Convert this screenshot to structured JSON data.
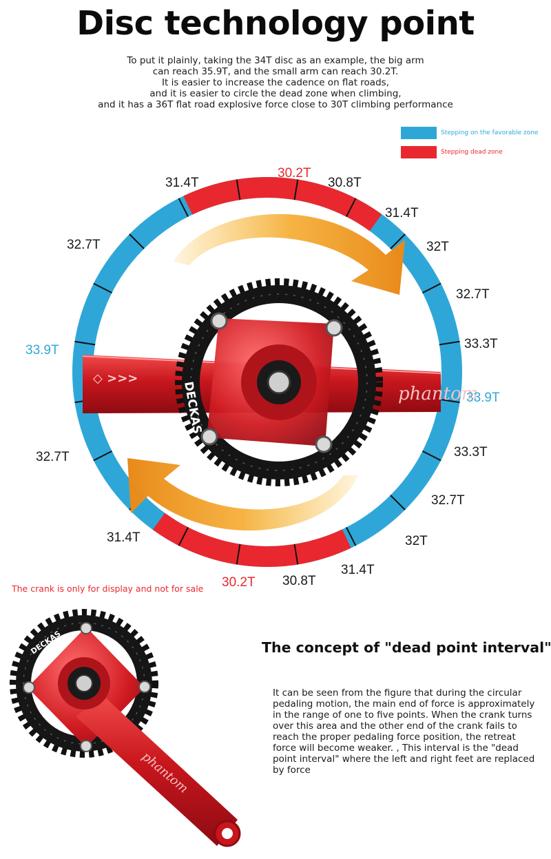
{
  "title": "Disc technology point",
  "intro": [
    "To put it plainly, taking the 34T disc as an example, the big arm",
    "can reach 35.9T, and the small arm can reach 30.2T.",
    "It is easier to increase the cadence on flat roads,",
    "and it is easier to circle the dead zone when climbing,",
    "and it has a 36T flat road explosive force close to 30T climbing performance"
  ],
  "legend": {
    "favorable": "Stepping on the favorable zone",
    "dead": "Stepping dead zone",
    "favorable_color": "#2ea7d8",
    "dead_color": "#e8282e"
  },
  "teeth_labels": [
    "31.4T",
    "30.2T",
    "30.8T",
    "31.4T",
    "32T",
    "32.7T",
    "33.3T",
    "33.9T",
    "33.3T",
    "32.7T",
    "32T",
    "31.4T",
    "30.8T",
    "30.2T",
    "31.4T",
    "32.7T",
    "33.9T",
    "32.7T"
  ],
  "crank_brand": "DECKAS",
  "arm_brand": "phantom",
  "note": "The crank is only for display and not for sale",
  "concept": {
    "title": "The concept of \"dead point interval\"",
    "lines": [
      "It can be seen from the figure that during the circular",
      "pedaling motion, the main end of force is approximately",
      "in the range of one to five points. When the crank turns",
      "over this area and the other end of the crank fails to",
      "reach the proper pedaling force position, the retreat",
      "force will become weaker. , This interval is the \"dead",
      "point interval\" where the left and right feet are replaced",
      "by force"
    ]
  }
}
